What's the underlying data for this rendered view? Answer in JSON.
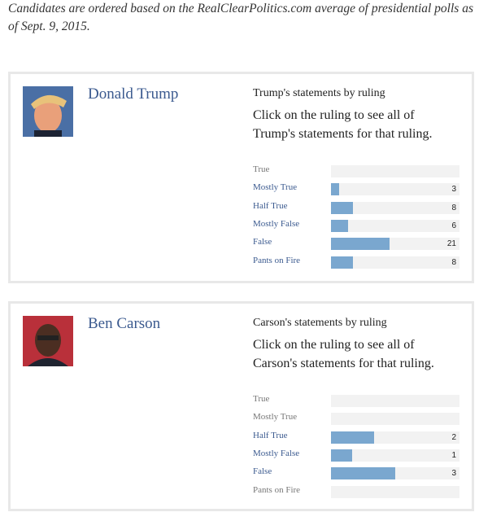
{
  "intro": "Candidates are ordered based on the RealClearPolitics.com average of presidential polls as of Sept. 9, 2015.",
  "candidates": [
    {
      "name": "Donald Trump",
      "ruling_title": "Trump's statements by ruling",
      "instruction": "Click on the ruling to see all of Trump's statements for that ruling.",
      "rulings": [
        {
          "label": "True",
          "count": null
        },
        {
          "label": "Mostly True",
          "count": 3
        },
        {
          "label": "Half True",
          "count": 8
        },
        {
          "label": "Mostly False",
          "count": 6
        },
        {
          "label": "False",
          "count": 21
        },
        {
          "label": "Pants on Fire",
          "count": 8
        }
      ]
    },
    {
      "name": "Ben Carson",
      "ruling_title": "Carson's statements by ruling",
      "instruction": "Click on the ruling to see all of Carson's statements for that ruling.",
      "rulings": [
        {
          "label": "True",
          "count": null
        },
        {
          "label": "Mostly True",
          "count": null
        },
        {
          "label": "Half True",
          "count": 2
        },
        {
          "label": "Mostly False",
          "count": 1
        },
        {
          "label": "False",
          "count": 3
        },
        {
          "label": "Pants on Fire",
          "count": null
        }
      ]
    }
  ]
}
